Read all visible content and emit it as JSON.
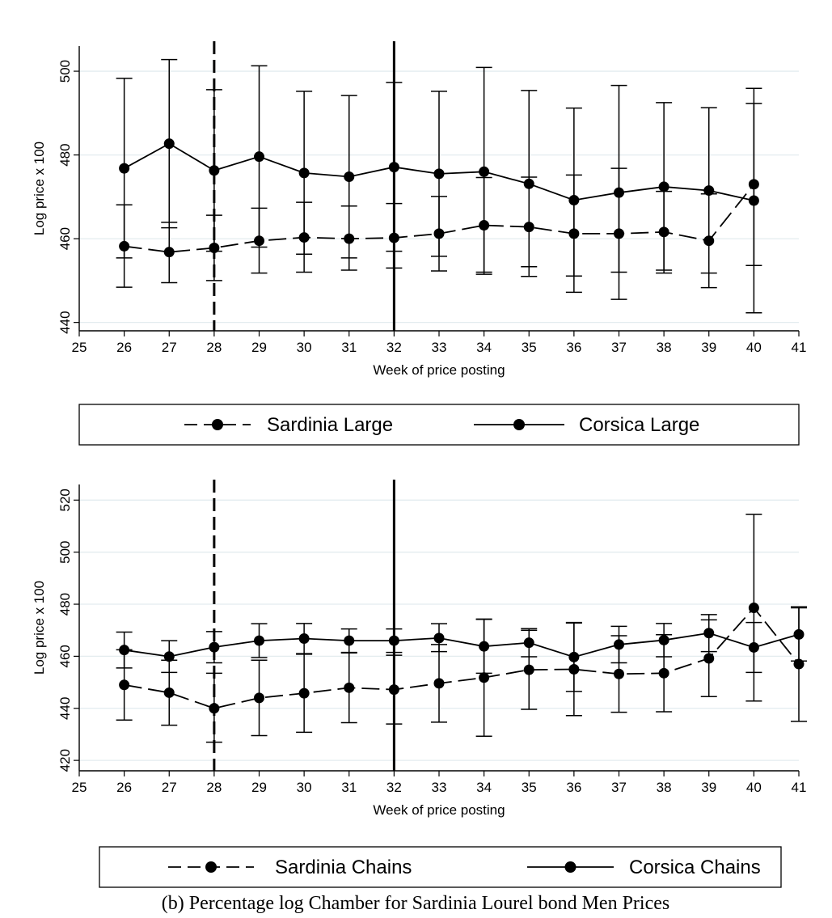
{
  "caption": "(b) Percentage log Chamber for Sardinia Lourel bond Men Prices",
  "chart_data": [
    {
      "type": "line",
      "xlabel": "Week of price posting",
      "ylabel": "Log price x 100",
      "xlim": [
        25,
        41
      ],
      "ylim": [
        438,
        506
      ],
      "xticks": [
        25,
        26,
        27,
        28,
        29,
        30,
        31,
        32,
        33,
        34,
        35,
        36,
        37,
        38,
        39,
        40,
        41
      ],
      "yticks": [
        440,
        460,
        480,
        500
      ],
      "grid": true,
      "vlines": [
        {
          "x": 28,
          "style": "dashed"
        },
        {
          "x": 32,
          "style": "solid"
        }
      ],
      "legend_position": "bottom",
      "series": [
        {
          "name": "Sardinia Large",
          "style": "dashed",
          "x": [
            26,
            27,
            28,
            29,
            30,
            31,
            32,
            33,
            34,
            35,
            36,
            37,
            38,
            39,
            40
          ],
          "y": [
            458.2,
            456.8,
            457.8,
            459.5,
            460.3,
            460.0,
            460.2,
            461.2,
            463.2,
            462.8,
            461.2,
            461.2,
            461.6,
            459.5,
            473.0
          ],
          "ci_low": [
            448.4,
            449.5,
            450.0,
            451.8,
            452.0,
            452.5,
            453.0,
            452.3,
            451.5,
            451.0,
            447.2,
            445.5,
            451.8,
            448.3,
            453.6
          ],
          "ci_high": [
            468.1,
            463.9,
            465.6,
            467.3,
            468.7,
            467.8,
            468.4,
            470.1,
            474.6,
            474.7,
            475.2,
            476.8,
            471.3,
            470.7,
            492.3
          ]
        },
        {
          "name": "Corsica Large",
          "style": "solid",
          "x": [
            26,
            27,
            28,
            29,
            30,
            31,
            32,
            33,
            34,
            35,
            36,
            37,
            38,
            39,
            40
          ],
          "y": [
            476.8,
            482.7,
            476.3,
            479.6,
            475.7,
            474.8,
            477.1,
            475.5,
            476.0,
            473.1,
            469.2,
            471.0,
            472.4,
            471.5,
            469.1
          ],
          "ci_low": [
            455.4,
            462.6,
            457.0,
            458.0,
            456.3,
            455.4,
            457.0,
            455.8,
            452.0,
            453.3,
            451.1,
            452.0,
            452.5,
            451.8,
            442.3
          ],
          "ci_high": [
            498.3,
            502.8,
            495.6,
            501.3,
            495.2,
            494.2,
            497.3,
            495.2,
            500.9,
            495.4,
            491.2,
            496.6,
            492.5,
            491.3,
            495.9
          ]
        }
      ]
    },
    {
      "type": "line",
      "xlabel": "Week of price posting",
      "ylabel": "Log price x 100",
      "xlim": [
        25,
        41
      ],
      "ylim": [
        416,
        526
      ],
      "xticks": [
        25,
        26,
        27,
        28,
        29,
        30,
        31,
        32,
        33,
        34,
        35,
        36,
        37,
        38,
        39,
        40,
        41
      ],
      "yticks": [
        420,
        440,
        460,
        480,
        500,
        520
      ],
      "grid": true,
      "vlines": [
        {
          "x": 28,
          "style": "dashed"
        },
        {
          "x": 32,
          "style": "solid"
        }
      ],
      "legend_position": "bottom",
      "series": [
        {
          "name": "Sardinia Chains",
          "style": "dashed",
          "x": [
            26,
            27,
            28,
            29,
            30,
            31,
            32,
            33,
            34,
            35,
            36,
            37,
            38,
            39,
            40,
            41
          ],
          "y": [
            449.0,
            446.0,
            440.0,
            444.0,
            445.8,
            447.9,
            447.2,
            449.6,
            451.8,
            454.8,
            455.0,
            453.2,
            453.5,
            459.2,
            478.6,
            457.0
          ],
          "ci_low": [
            435.5,
            433.5,
            427.0,
            429.5,
            430.8,
            434.5,
            434.0,
            434.7,
            429.3,
            439.6,
            437.2,
            438.5,
            438.7,
            444.5,
            442.8,
            435.0
          ],
          "ci_high": [
            462.5,
            458.5,
            453.5,
            458.5,
            460.8,
            461.3,
            460.4,
            464.5,
            474.3,
            470.0,
            472.8,
            467.9,
            468.3,
            474.0,
            514.5,
            479.0
          ]
        },
        {
          "name": "Corsica Chains",
          "style": "solid",
          "x": [
            26,
            27,
            28,
            29,
            30,
            31,
            32,
            33,
            34,
            35,
            36,
            37,
            38,
            39,
            40,
            41
          ],
          "y": [
            462.4,
            459.9,
            463.5,
            466.0,
            466.8,
            466.0,
            466.0,
            467.0,
            463.8,
            465.2,
            459.7,
            464.5,
            466.2,
            468.9,
            463.4,
            468.4
          ],
          "ci_low": [
            455.5,
            453.8,
            457.5,
            459.5,
            461.0,
            461.5,
            461.5,
            461.8,
            453.5,
            459.8,
            446.5,
            457.5,
            459.8,
            461.8,
            453.8,
            458.2
          ],
          "ci_high": [
            469.3,
            466.0,
            469.5,
            472.5,
            472.6,
            470.5,
            470.5,
            472.5,
            474.2,
            470.6,
            473.0,
            471.5,
            472.6,
            476.0,
            473.0,
            478.6
          ]
        }
      ]
    }
  ]
}
